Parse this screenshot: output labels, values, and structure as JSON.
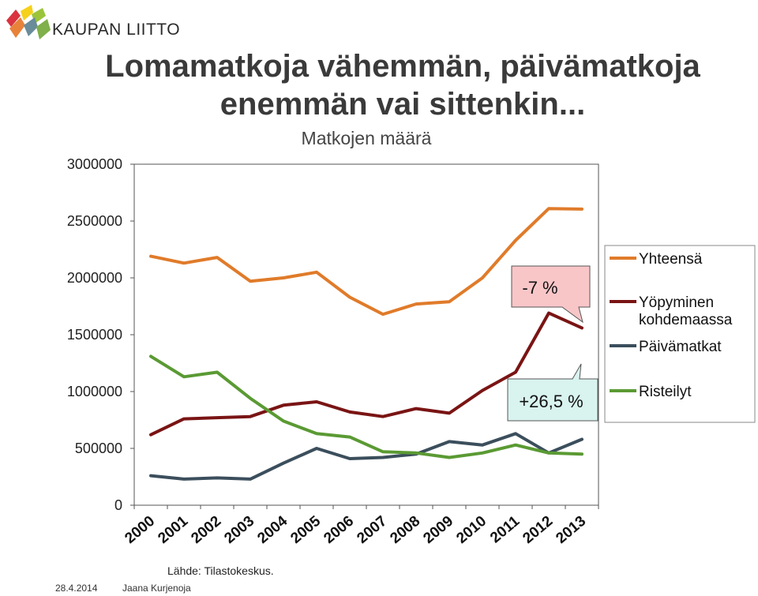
{
  "brand": {
    "name": "KAUPAN LIITTO"
  },
  "title": {
    "line1": "Lomamatkoja vähemmän, päivämatkoja",
    "line2": "enemmän vai sittenkin..."
  },
  "footer": {
    "source": "Lähde: Tilastokeskus.",
    "date": "28.4.2014",
    "author": "Jaana Kurjenoja"
  },
  "chart_data": {
    "type": "line",
    "title": "Matkojen määrä",
    "xlabel": "",
    "ylabel": "",
    "x": [
      "2000",
      "2001",
      "2002",
      "2003",
      "2004",
      "2005",
      "2006",
      "2007",
      "2008",
      "2009",
      "2010",
      "2011",
      "2012",
      "2013"
    ],
    "ylim": [
      0,
      3000000
    ],
    "yticks": [
      "0",
      "500000",
      "1000000",
      "1500000",
      "2000000",
      "2500000",
      "3000000"
    ],
    "grid": false,
    "legend": "right",
    "series": [
      {
        "name": "Yhteensä",
        "color": "#e07b2a",
        "values": [
          2190000,
          2130000,
          2180000,
          1970000,
          2000000,
          2050000,
          1830000,
          1680000,
          1770000,
          1790000,
          2000000,
          2330000,
          2610000,
          2605000
        ]
      },
      {
        "name": "Yöpyminen kohdemaassa",
        "color": "#7a1414",
        "values": [
          620000,
          760000,
          770000,
          780000,
          880000,
          910000,
          820000,
          780000,
          850000,
          810000,
          1010000,
          1170000,
          1690000,
          1560000
        ]
      },
      {
        "name": "Päivämatkat",
        "color": "#3b4e5c",
        "values": [
          260000,
          230000,
          240000,
          230000,
          370000,
          500000,
          410000,
          420000,
          450000,
          560000,
          530000,
          630000,
          460000,
          580000
        ]
      },
      {
        "name": "Risteilyt",
        "color": "#5a9a33",
        "values": [
          1310000,
          1130000,
          1170000,
          940000,
          740000,
          630000,
          600000,
          470000,
          460000,
          420000,
          460000,
          530000,
          460000,
          450000
        ]
      }
    ],
    "annotations": [
      {
        "text": "-7 %",
        "fill": "#f9c6c8"
      },
      {
        "text": "+26,5 %",
        "fill": "#d9f3ef"
      }
    ]
  }
}
